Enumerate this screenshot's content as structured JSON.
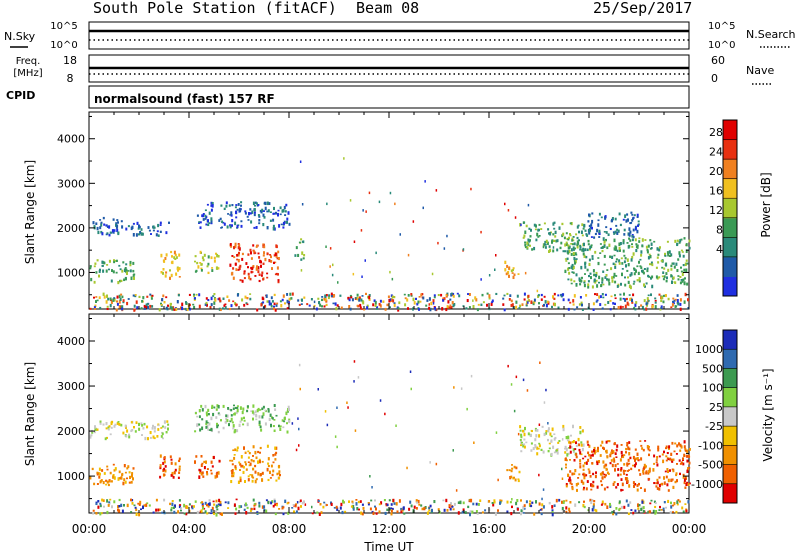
{
  "header": {
    "station": "South Pole Station (fitACF)",
    "beam": "Beam 08",
    "date": "25/Sep/2017"
  },
  "mode_text": "normalsound (fast) 157 RF",
  "side_labels": {
    "nsky": "N.Sky",
    "nsky_hi": "10^5",
    "nsky_lo": "10^0",
    "nsearch": "N.Search",
    "nsearch_hi": "10^5",
    "nsearch_lo": "10^0",
    "freq_top": "Freq.",
    "freq_unit": "[MHz]",
    "freq_hi": "18",
    "freq_lo": "8",
    "nave_hi": "60",
    "nave_lo": "0",
    "nave": "Nave",
    "cpid": "CPID"
  },
  "chart_data": [
    {
      "type": "heatmap",
      "panel": "power",
      "ylabel": "Slant Range [km]",
      "ylim": [
        180,
        4600
      ],
      "yticks": [
        "1000",
        "2000",
        "3000",
        "4000"
      ],
      "xlim": [
        0,
        24
      ],
      "xticks": [
        "00:00",
        "04:00",
        "08:00",
        "12:00",
        "16:00",
        "20:00",
        "00:00"
      ],
      "colorbar": {
        "label": "Power [dB]",
        "ticks": [
          "28",
          "24",
          "20",
          "16",
          "12",
          "8",
          "4"
        ],
        "colors": [
          "#1f2fe0",
          "#1f5aa8",
          "#2a8a7a",
          "#3a9a55",
          "#a8c830",
          "#f0c020",
          "#f08020",
          "#e83010",
          "#e00000"
        ]
      },
      "regions": [
        {
          "t0": 0.0,
          "t1": 1.6,
          "r0": 1850,
          "r1": 2250,
          "level": 1
        },
        {
          "t0": 1.6,
          "t1": 3.2,
          "r0": 1850,
          "r1": 2150,
          "level": 1
        },
        {
          "t0": 0.0,
          "t1": 1.8,
          "r0": 800,
          "r1": 1300,
          "level": 3
        },
        {
          "t0": 2.8,
          "t1": 3.6,
          "r0": 900,
          "r1": 1500,
          "level": 5
        },
        {
          "t0": 4.2,
          "t1": 5.2,
          "r0": 1000,
          "r1": 1500,
          "level": 4
        },
        {
          "t0": 5.6,
          "t1": 7.6,
          "r0": 800,
          "r1": 1700,
          "level": 7
        },
        {
          "t0": 8.2,
          "t1": 8.6,
          "r0": 1300,
          "r1": 1800,
          "level": 3
        },
        {
          "t0": 4.2,
          "t1": 8.0,
          "r0": 2000,
          "r1": 2600,
          "level": 1
        },
        {
          "t0": 16.6,
          "t1": 17.2,
          "r0": 900,
          "r1": 1300,
          "level": 5
        },
        {
          "t0": 17.2,
          "t1": 19.8,
          "r0": 1500,
          "r1": 2150,
          "level": 3
        },
        {
          "t0": 19.8,
          "t1": 22.0,
          "r0": 1800,
          "r1": 2400,
          "level": 1
        },
        {
          "t0": 19.0,
          "t1": 24.0,
          "r0": 700,
          "r1": 1800,
          "level": 3
        },
        {
          "t0": 0.0,
          "t1": 24.0,
          "r0": 180,
          "r1": 550,
          "level": 0
        }
      ]
    },
    {
      "type": "heatmap",
      "panel": "velocity",
      "ylabel": "Slant Range [km]",
      "ylim": [
        180,
        4600
      ],
      "yticks": [
        "1000",
        "2000",
        "3000",
        "4000"
      ],
      "xlim": [
        0,
        24
      ],
      "xticks": [
        "00:00",
        "04:00",
        "08:00",
        "12:00",
        "16:00",
        "20:00",
        "00:00"
      ],
      "xlabel": "Time UT",
      "colorbar": {
        "label": "Velocity [m s⁻¹]",
        "ticks": [
          "1000",
          "500",
          "100",
          "25",
          "-25",
          "-100",
          "-500",
          "-1000"
        ],
        "colors": [
          "#1c2cb8",
          "#2f6ab0",
          "#3c9a50",
          "#80d040",
          "#c8c8c8",
          "#f0c000",
          "#f09000",
          "#f06000",
          "#e00000"
        ]
      },
      "regions": [
        {
          "t0": 0.0,
          "t1": 3.2,
          "r0": 1850,
          "r1": 2250,
          "level": 4
        },
        {
          "t0": 0.0,
          "t1": 1.8,
          "r0": 800,
          "r1": 1300,
          "level": 6
        },
        {
          "t0": 2.8,
          "t1": 3.6,
          "r0": 900,
          "r1": 1500,
          "level": 7
        },
        {
          "t0": 4.2,
          "t1": 5.2,
          "r0": 1000,
          "r1": 1500,
          "level": 7
        },
        {
          "t0": 5.6,
          "t1": 7.6,
          "r0": 900,
          "r1": 1700,
          "level": 6
        },
        {
          "t0": 4.2,
          "t1": 8.0,
          "r0": 2000,
          "r1": 2600,
          "level": 3
        },
        {
          "t0": 16.6,
          "t1": 17.2,
          "r0": 900,
          "r1": 1300,
          "level": 6
        },
        {
          "t0": 17.2,
          "t1": 19.8,
          "r0": 1500,
          "r1": 2150,
          "level": 4
        },
        {
          "t0": 19.0,
          "t1": 24.0,
          "r0": 700,
          "r1": 1800,
          "level": 7
        },
        {
          "t0": 0.0,
          "t1": 24.0,
          "r0": 180,
          "r1": 500,
          "level": 4
        }
      ]
    }
  ]
}
